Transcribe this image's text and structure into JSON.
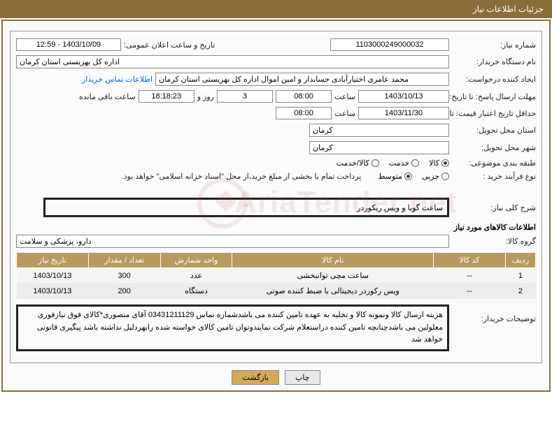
{
  "header": {
    "title": "جزئیات اطلاعات نیاز"
  },
  "fields": {
    "need_number_label": "شماره نیاز:",
    "need_number": "1103000249000032",
    "announce_label": "تاریخ و ساعت اعلان عمومی:",
    "announce_value": "1403/10/09 - 12:59",
    "buyer_org_label": "نام دستگاه خریدار:",
    "buyer_org": "اداره کل بهزیستی استان کرمان",
    "requester_label": "ایجاد کننده درخواست:",
    "requester": "محمد عامری اختیارآبادی حسابدار و امین اموال اداره کل بهزیستی استان کرمان",
    "contact_link": "اطلاعات تماس خریدار",
    "deadline_label": "مهلت ارسال پاسخ: تا تاریخ:",
    "deadline_date": "1403/10/13",
    "time_label1": "ساعت",
    "deadline_time": "08:00",
    "days_value": "3",
    "days_suffix": "روز و",
    "remaining_time": "18:18:23",
    "remaining_label": "ساعت باقی مانده",
    "validity_label": "حداقل تاریخ اعتبار قیمت: تا تاریخ:",
    "validity_date": "1403/11/30",
    "time_label2": "ساعت",
    "validity_time": "08:00",
    "delivery_province_label": "استان محل تحویل:",
    "delivery_province": "کرمان",
    "delivery_city_label": "شهر محل تحویل:",
    "delivery_city": "کرمان"
  },
  "category": {
    "label": "طبقه بندی موضوعی:",
    "options": [
      {
        "text": "کالا",
        "checked": true
      },
      {
        "text": "خدمت",
        "checked": false
      },
      {
        "text": "کالا/خدمت",
        "checked": false
      }
    ]
  },
  "process": {
    "label": "نوع فرآیند خرید :",
    "options": [
      {
        "text": "جزیی",
        "checked": false
      },
      {
        "text": "متوسط",
        "checked": true
      }
    ],
    "note": "پرداخت تمام یا بخشی از مبلغ خرید،از محل \"اسناد خزانه اسلامی\" خواهد بود."
  },
  "description": {
    "label": "شرح کلی نیاز:",
    "text": "ساعت گویا و ویس ریکوردر"
  },
  "goods_section_title": "اطلاعات کالاهای مورد نیاز",
  "goods_group": {
    "label": "گروه کالا:",
    "value": "دارو، پزشکی و سلامت"
  },
  "table": {
    "headers": {
      "row": "ردیف",
      "code": "کد کالا",
      "name": "نام کالا",
      "unit": "واحد شمارش",
      "qty": "تعداد / مقدار",
      "date": "تاریخ نیاز"
    },
    "rows": [
      {
        "n": "1",
        "code": "--",
        "name": "ساعت مچی توانبخشی",
        "unit": "عدد",
        "qty": "300",
        "date": "1403/10/13"
      },
      {
        "n": "2",
        "code": "--",
        "name": "ویس رکوردر دیجیتالی یا ضبط کننده صوتی",
        "unit": "دستگاه",
        "qty": "200",
        "date": "1403/10/13"
      }
    ]
  },
  "buyer_notes": {
    "label": "توضیحات خریدار:",
    "text": "هزینه ارسال کالا ونمونه کالا و تخلیه به عهده تامین کننده می باشدشماره تماس 03431211129 آقای منصوری*کالای فوق نیازفوری معلولین می باشدچنانچه تامین کننده دراستعلام شرکت نمایندوتوان تامین کالای خواسته شده رابهردلیل نداشته باشد پیگیری قانونی خواهد شد"
  },
  "buttons": {
    "print": "چاپ",
    "back": "بازگشت"
  },
  "style": {
    "header_bg": "#8a6d3b",
    "header_fg": "#ffffff",
    "border_color": "#8a6d3b",
    "th_bg": "#b89a5e",
    "th_fg": "#ffffff",
    "btn_bg": "#e8e8e8",
    "btn_back_bg": "#d6a95a",
    "link_color": "#0066cc",
    "font_size_base": 11,
    "watermark_color": "rgba(170,50,50,0.10)",
    "watermark_text": "AriaTender.net"
  }
}
